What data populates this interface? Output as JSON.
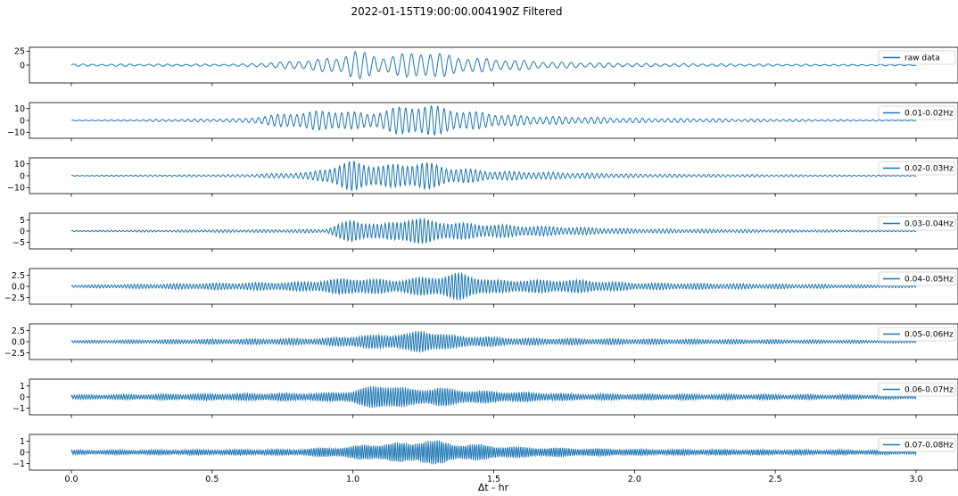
{
  "figure": {
    "title": "2022-01-15T19:00:00.004190Z Filtered",
    "xlabel": "Δt - hr",
    "x_ticks": [
      "0.0",
      "0.5",
      "1.0",
      "1.5",
      "2.0",
      "2.5",
      "3.0"
    ],
    "line_color": "#1f77b4"
  },
  "chart_data": [
    {
      "type": "line",
      "legend": "raw data",
      "legend_position": "upper-right",
      "x_range": [
        0,
        3
      ],
      "ylim": [
        -32,
        32
      ],
      "y_ticks": [
        {
          "v": 25,
          "label": "25"
        },
        {
          "v": 0,
          "label": "0"
        }
      ],
      "envelope": [
        {
          "x": 0.0,
          "amp": 2
        },
        {
          "x": 0.6,
          "amp": 2
        },
        {
          "x": 0.75,
          "amp": 6
        },
        {
          "x": 0.95,
          "amp": 14
        },
        {
          "x": 1.0,
          "amp": 28
        },
        {
          "x": 1.1,
          "amp": 15
        },
        {
          "x": 1.25,
          "amp": 26
        },
        {
          "x": 1.4,
          "amp": 14
        },
        {
          "x": 1.7,
          "amp": 6
        },
        {
          "x": 2.0,
          "amp": 3
        },
        {
          "x": 3.0,
          "amp": 1
        }
      ]
    },
    {
      "type": "line",
      "legend": "0.01-0.02Hz",
      "legend_position": "upper-right",
      "x_range": [
        0,
        3
      ],
      "ylim": [
        -15,
        15
      ],
      "y_ticks": [
        {
          "v": 10,
          "label": "10"
        },
        {
          "v": 0,
          "label": "0"
        },
        {
          "v": -10,
          "label": "−10"
        }
      ],
      "envelope": [
        {
          "x": 0.0,
          "amp": 0.3
        },
        {
          "x": 0.6,
          "amp": 1.5
        },
        {
          "x": 0.8,
          "amp": 7
        },
        {
          "x": 0.95,
          "amp": 9
        },
        {
          "x": 1.05,
          "amp": 6
        },
        {
          "x": 1.15,
          "amp": 11
        },
        {
          "x": 1.25,
          "amp": 14
        },
        {
          "x": 1.4,
          "amp": 8
        },
        {
          "x": 1.6,
          "amp": 4
        },
        {
          "x": 2.0,
          "amp": 2
        },
        {
          "x": 3.0,
          "amp": 0.3
        }
      ]
    },
    {
      "type": "line",
      "legend": "0.02-0.03Hz",
      "legend_position": "upper-right",
      "x_range": [
        0,
        3
      ],
      "ylim": [
        -15,
        15
      ],
      "y_ticks": [
        {
          "v": 10,
          "label": "10"
        },
        {
          "v": 0,
          "label": "0"
        },
        {
          "v": -10,
          "label": "−10"
        }
      ],
      "envelope": [
        {
          "x": 0.0,
          "amp": 0.4
        },
        {
          "x": 0.6,
          "amp": 1
        },
        {
          "x": 0.85,
          "amp": 3
        },
        {
          "x": 1.0,
          "amp": 13
        },
        {
          "x": 1.1,
          "amp": 9
        },
        {
          "x": 1.25,
          "amp": 12
        },
        {
          "x": 1.35,
          "amp": 7
        },
        {
          "x": 1.5,
          "amp": 4
        },
        {
          "x": 1.7,
          "amp": 3
        },
        {
          "x": 2.0,
          "amp": 1.5
        },
        {
          "x": 3.0,
          "amp": 0.4
        }
      ]
    },
    {
      "type": "line",
      "legend": "0.03-0.04Hz",
      "legend_position": "upper-right",
      "x_range": [
        0,
        3
      ],
      "ylim": [
        -8,
        8
      ],
      "y_ticks": [
        {
          "v": 5,
          "label": "5"
        },
        {
          "v": 0,
          "label": "0"
        },
        {
          "v": -5,
          "label": "−5"
        }
      ],
      "envelope": [
        {
          "x": 0.0,
          "amp": 0.3
        },
        {
          "x": 0.9,
          "amp": 0.8
        },
        {
          "x": 1.0,
          "amp": 5.5
        },
        {
          "x": 1.1,
          "amp": 3
        },
        {
          "x": 1.2,
          "amp": 6.5
        },
        {
          "x": 1.35,
          "amp": 4
        },
        {
          "x": 1.6,
          "amp": 2.5
        },
        {
          "x": 2.0,
          "amp": 1
        },
        {
          "x": 3.0,
          "amp": 0.3
        }
      ]
    },
    {
      "type": "line",
      "legend": "0.04-0.05Hz",
      "legend_position": "upper-right",
      "x_range": [
        0,
        3
      ],
      "ylim": [
        -4,
        4
      ],
      "y_ticks": [
        {
          "v": 2.5,
          "label": "2.5"
        },
        {
          "v": 0,
          "label": "0.0"
        },
        {
          "v": -2.5,
          "label": "−2.5"
        }
      ],
      "envelope": [
        {
          "x": 0.0,
          "amp": 0.3
        },
        {
          "x": 0.8,
          "amp": 1
        },
        {
          "x": 1.0,
          "amp": 2
        },
        {
          "x": 1.15,
          "amp": 1.5
        },
        {
          "x": 1.3,
          "amp": 2.5
        },
        {
          "x": 1.38,
          "amp": 3.2
        },
        {
          "x": 1.5,
          "amp": 1.5
        },
        {
          "x": 1.8,
          "amp": 1.5
        },
        {
          "x": 2.0,
          "amp": 0.8
        },
        {
          "x": 3.0,
          "amp": 0.3
        }
      ]
    },
    {
      "type": "line",
      "legend": "0.05-0.06Hz",
      "legend_position": "upper-right",
      "x_range": [
        0,
        3
      ],
      "ylim": [
        -4,
        4
      ],
      "y_ticks": [
        {
          "v": 2.5,
          "label": "2.5"
        },
        {
          "v": 0,
          "label": "0.0"
        },
        {
          "v": -2.5,
          "label": "−2.5"
        }
      ],
      "envelope": [
        {
          "x": 0.0,
          "amp": 0.3
        },
        {
          "x": 0.9,
          "amp": 0.8
        },
        {
          "x": 1.0,
          "amp": 1.4
        },
        {
          "x": 1.2,
          "amp": 2
        },
        {
          "x": 1.25,
          "amp": 3
        },
        {
          "x": 1.35,
          "amp": 1.5
        },
        {
          "x": 1.6,
          "amp": 0.8
        },
        {
          "x": 3.0,
          "amp": 0.3
        }
      ]
    },
    {
      "type": "line",
      "legend": "0.06-0.07Hz",
      "legend_position": "upper-right",
      "x_range": [
        0,
        3
      ],
      "ylim": [
        -1.6,
        1.6
      ],
      "y_ticks": [
        {
          "v": 1,
          "label": "1"
        },
        {
          "v": 0,
          "label": "0"
        },
        {
          "v": -1,
          "label": "−1"
        }
      ],
      "envelope": [
        {
          "x": 0.0,
          "amp": 0.2
        },
        {
          "x": 0.9,
          "amp": 0.4
        },
        {
          "x": 1.0,
          "amp": 0.6
        },
        {
          "x": 1.1,
          "amp": 1.3
        },
        {
          "x": 1.2,
          "amp": 0.8
        },
        {
          "x": 1.3,
          "amp": 0.9
        },
        {
          "x": 1.45,
          "amp": 0.6
        },
        {
          "x": 1.8,
          "amp": 0.3
        },
        {
          "x": 3.0,
          "amp": 0.2
        }
      ]
    },
    {
      "type": "line",
      "legend": "0.07-0.08Hz",
      "legend_position": "upper-right",
      "x_range": [
        0,
        3
      ],
      "ylim": [
        -1.6,
        1.6
      ],
      "y_ticks": [
        {
          "v": 1,
          "label": "1"
        },
        {
          "v": 0,
          "label": "0"
        },
        {
          "v": -1,
          "label": "−1"
        }
      ],
      "envelope": [
        {
          "x": 0.0,
          "amp": 0.2
        },
        {
          "x": 0.8,
          "amp": 0.3
        },
        {
          "x": 1.0,
          "amp": 0.6
        },
        {
          "x": 1.1,
          "amp": 0.9
        },
        {
          "x": 1.2,
          "amp": 0.9
        },
        {
          "x": 1.25,
          "amp": 1.3
        },
        {
          "x": 1.35,
          "amp": 0.9
        },
        {
          "x": 1.6,
          "amp": 0.5
        },
        {
          "x": 2.0,
          "amp": 0.3
        },
        {
          "x": 3.0,
          "amp": 0.2
        }
      ]
    }
  ]
}
